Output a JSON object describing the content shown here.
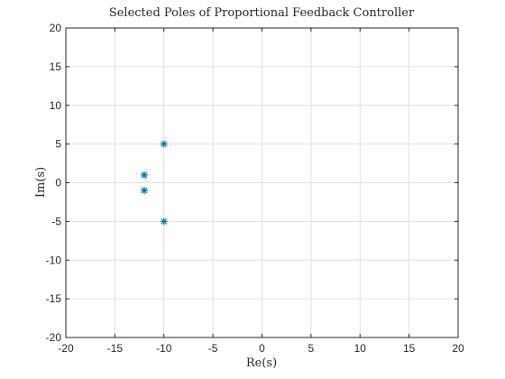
{
  "chart_data": {
    "type": "scatter",
    "title": "Selected Poles of Proportional Feedback Controller",
    "xlabel": "Re(s)",
    "ylabel": "Im(s)",
    "xlim": [
      -20,
      20
    ],
    "ylim": [
      -20,
      20
    ],
    "xticks": [
      -20,
      -15,
      -10,
      -5,
      0,
      5,
      10,
      15,
      20
    ],
    "yticks": [
      -20,
      -15,
      -10,
      -5,
      0,
      5,
      10,
      15,
      20
    ],
    "grid": true,
    "marker": "asterisk",
    "series": [
      {
        "color": "#0072BD",
        "x": [
          -10,
          -12,
          -12,
          -10
        ],
        "y": [
          5,
          1,
          -1,
          -5
        ]
      }
    ]
  }
}
